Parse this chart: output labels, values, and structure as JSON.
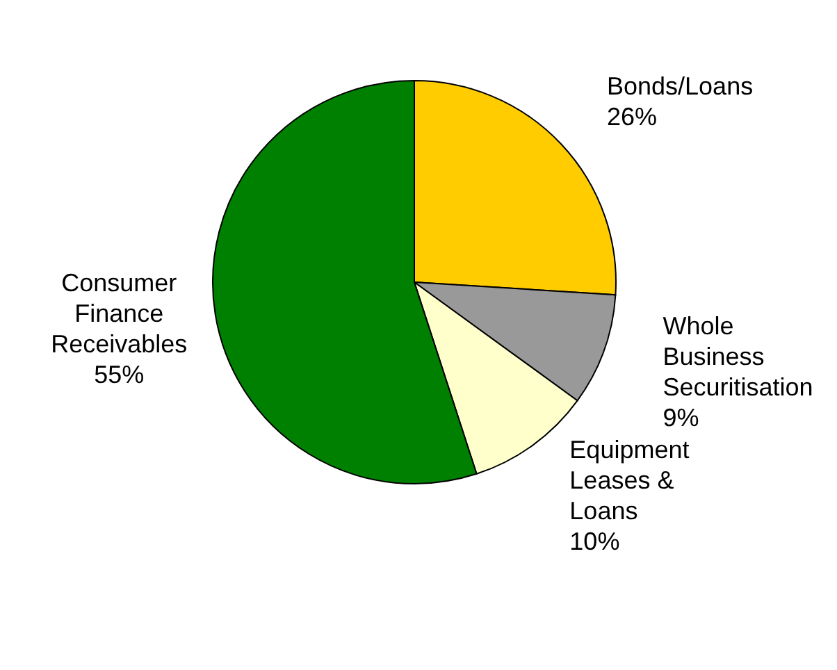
{
  "chart_data": {
    "type": "pie",
    "categories": [
      "Bonds/Loans",
      "Whole Business Securitisation",
      "Equipment Leases & Loans",
      "Consumer Finance Receivables"
    ],
    "values": [
      26,
      9,
      10,
      55
    ],
    "value_labels": [
      "26%",
      "9%",
      "10%",
      "55%"
    ],
    "colors": [
      "#ffcc00",
      "#999999",
      "#ffffcc",
      "#008000"
    ],
    "legend": false
  }
}
